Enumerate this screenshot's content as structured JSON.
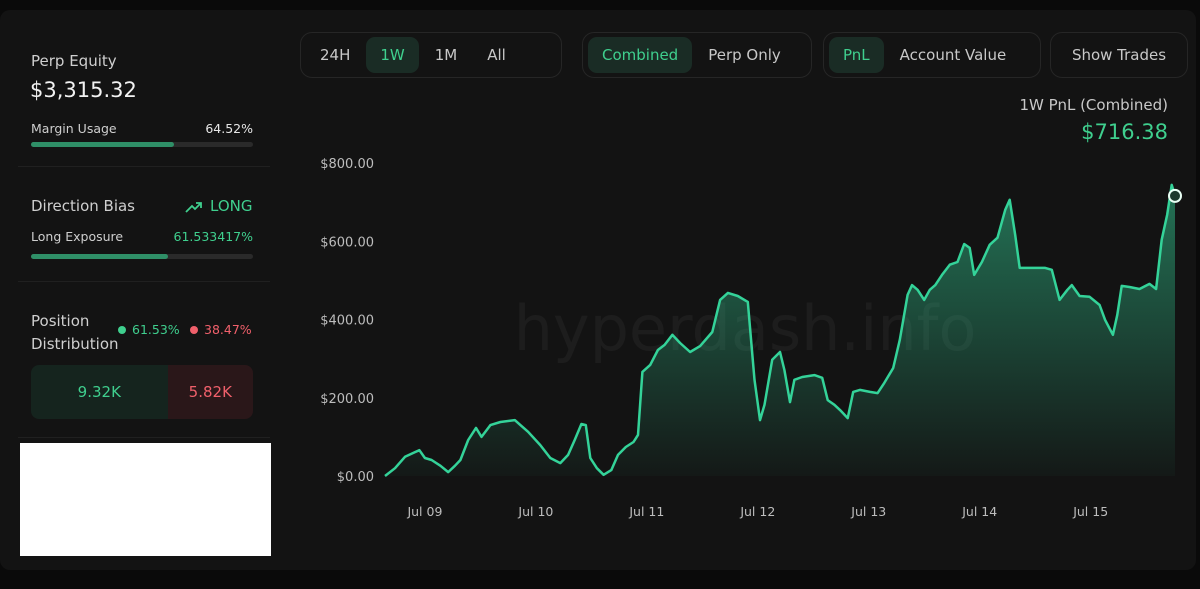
{
  "sidebar": {
    "perp_equity": {
      "label": "Perp Equity",
      "value": "$3,315.32"
    },
    "margin_usage": {
      "label": "Margin Usage",
      "value": 64.52,
      "value_label": "64.52%"
    },
    "direction_bias": {
      "label": "Direction Bias",
      "value": "LONG"
    },
    "long_exposure": {
      "label": "Long Exposure",
      "value": 61.533417,
      "value_label": "61.533417%"
    },
    "position_distribution": {
      "label": "Position Distribution",
      "long": {
        "share": 61.53,
        "share_label": "61.53%",
        "value": "9.32K"
      },
      "short": {
        "share": 38.47,
        "share_label": "38.47%",
        "value": "5.82K"
      }
    }
  },
  "toolbar": {
    "range": {
      "options": [
        "24H",
        "1W",
        "1M",
        "All"
      ],
      "active": 1
    },
    "view": {
      "options": [
        "Combined",
        "Perp Only"
      ],
      "active": 0
    },
    "metric": {
      "options": [
        "PnL",
        "Account Value"
      ],
      "active": 0
    },
    "trades": {
      "options": [
        "Show Trades"
      ],
      "active": null
    }
  },
  "chart_data": {
    "type": "area",
    "subtitle": "1W PnL (Combined)",
    "annotation": "$716.38",
    "watermark": "hyperdash.info",
    "color": "#34d399",
    "grid": false,
    "x": [
      8.64,
      8.73,
      8.82,
      8.91,
      8.95,
      9.0,
      9.06,
      9.14,
      9.21,
      9.27,
      9.32,
      9.39,
      9.46,
      9.51,
      9.59,
      9.68,
      9.81,
      9.86,
      9.93,
      10.04,
      10.13,
      10.22,
      10.29,
      10.35,
      10.41,
      10.45,
      10.49,
      10.55,
      10.61,
      10.68,
      10.74,
      10.81,
      10.88,
      10.92,
      10.96,
      11.03,
      11.1,
      11.16,
      11.23,
      11.3,
      11.39,
      11.48,
      11.59,
      11.66,
      11.73,
      11.82,
      11.91,
      11.97,
      12.02,
      12.06,
      12.13,
      12.2,
      12.24,
      12.29,
      12.33,
      12.4,
      12.51,
      12.58,
      12.63,
      12.69,
      12.74,
      12.81,
      12.86,
      12.92,
      13.01,
      13.08,
      13.14,
      13.22,
      13.28,
      13.35,
      13.39,
      13.44,
      13.5,
      13.55,
      13.6,
      13.66,
      13.73,
      13.8,
      13.86,
      13.91,
      13.95,
      14.02,
      14.09,
      14.16,
      14.23,
      14.27,
      14.32,
      14.36,
      14.45,
      14.59,
      14.65,
      14.72,
      14.79,
      14.83,
      14.9,
      14.99,
      15.08,
      15.13,
      15.2,
      15.24,
      15.28,
      15.35,
      15.44,
      15.53,
      15.59,
      15.64,
      15.69,
      15.73,
      15.76
    ],
    "values": [
      0,
      20,
      49,
      61,
      66,
      46,
      41,
      26,
      10,
      26,
      41,
      92,
      123,
      100,
      130,
      138,
      143,
      130,
      113,
      79,
      46,
      33,
      54,
      92,
      133,
      130,
      46,
      20,
      3,
      15,
      54,
      74,
      87,
      105,
      266,
      284,
      322,
      335,
      361,
      340,
      317,
      332,
      368,
      450,
      468,
      460,
      445,
      246,
      143,
      182,
      297,
      317,
      271,
      189,
      246,
      253,
      258,
      251,
      194,
      182,
      169,
      148,
      215,
      220,
      215,
      212,
      238,
      276,
      348,
      463,
      488,
      476,
      450,
      476,
      488,
      514,
      540,
      547,
      593,
      583,
      514,
      547,
      591,
      609,
      680,
      706,
      616,
      532,
      532,
      532,
      527,
      450,
      476,
      488,
      460,
      458,
      437,
      399,
      361,
      412,
      486,
      483,
      478,
      491,
      478,
      604,
      668,
      744,
      716
    ],
    "xlim": [
      8.64,
      15.76
    ],
    "ylim": [
      0,
      800
    ],
    "xticks": [
      {
        "value": 9,
        "label": "Jul 09"
      },
      {
        "value": 10,
        "label": "Jul 10"
      },
      {
        "value": 11,
        "label": "Jul 11"
      },
      {
        "value": 12,
        "label": "Jul 12"
      },
      {
        "value": 13,
        "label": "Jul 13"
      },
      {
        "value": 14,
        "label": "Jul 14"
      },
      {
        "value": 15,
        "label": "Jul 15"
      }
    ],
    "yticks": [
      {
        "value": 0,
        "label": "$0.00"
      },
      {
        "value": 200,
        "label": "$200.00"
      },
      {
        "value": 400,
        "label": "$400.00"
      },
      {
        "value": 600,
        "label": "$600.00"
      },
      {
        "value": 800,
        "label": "$800.00"
      }
    ]
  }
}
